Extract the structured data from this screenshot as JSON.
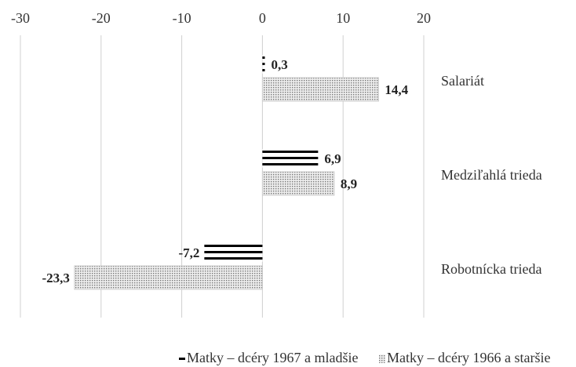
{
  "chart_data": {
    "type": "hbar",
    "categories": [
      "Salariát",
      "Medziľahlá trieda",
      "Robotnícka trieda"
    ],
    "series": [
      {
        "name": "Matky – dcéry 1967 a mladšie",
        "color": "#000000",
        "pattern": "stripes",
        "values": [
          0.3,
          6.9,
          -7.2
        ],
        "value_labels": [
          "0,3",
          "6,9",
          "-7,2"
        ]
      },
      {
        "name": "Matky – dcéry 1966 a staršie",
        "color": "#777777",
        "pattern": "dots",
        "values": [
          14.4,
          8.9,
          -23.3
        ],
        "value_labels": [
          "14,4",
          "8,9",
          "-23,3"
        ]
      }
    ],
    "xlim": [
      -30,
      20
    ],
    "xticks": [
      -30,
      -20,
      -10,
      0,
      10,
      20
    ],
    "grid": true,
    "legend": "bottom"
  }
}
